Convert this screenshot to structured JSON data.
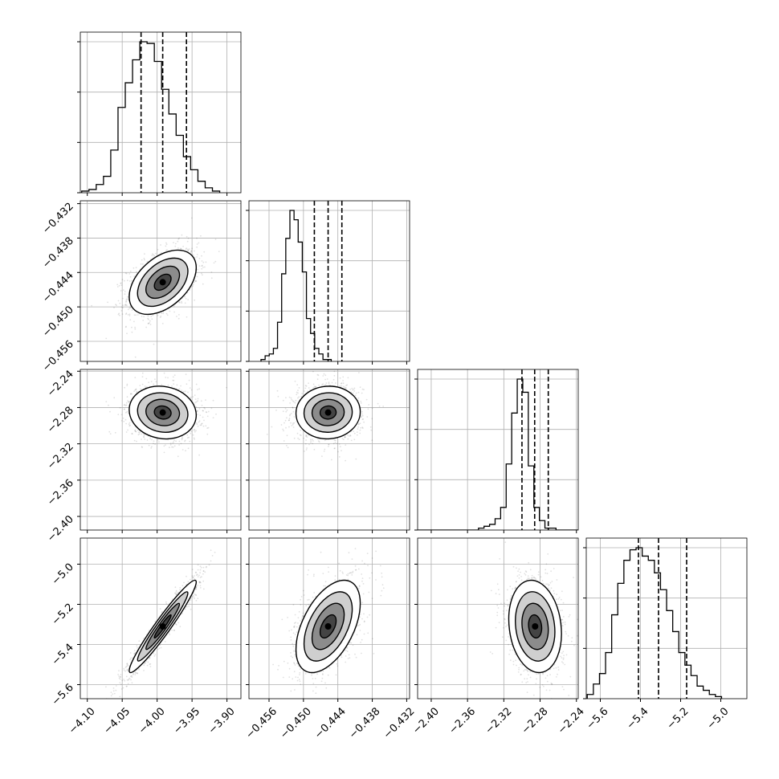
{
  "figure": {
    "background": "#ffffff",
    "grid_color": "#b0b0b0",
    "line_color": "#000000"
  },
  "chart_data": {
    "type": "corner",
    "grid": true,
    "params": [
      {
        "range": [
          -4.11,
          -3.88
        ],
        "ticks": [
          -4.1,
          -4.05,
          -4.0,
          -3.95,
          -3.9
        ],
        "tick_labels": [
          "−4.10",
          "−4.05",
          "−4.00",
          "−3.95",
          "−3.90"
        ],
        "quantiles": [
          -4.023,
          -3.992,
          -3.958
        ]
      },
      {
        "range": [
          -0.4595,
          -0.4315
        ],
        "ticks": [
          -0.456,
          -0.45,
          -0.444,
          -0.438,
          -0.432
        ],
        "tick_labels": [
          "−0.456",
          "−0.450",
          "−0.444",
          "−0.438",
          "−0.432"
        ],
        "quantiles": [
          -0.4481,
          -0.4457,
          -0.4433
        ]
      },
      {
        "range": [
          -2.415,
          -2.238
        ],
        "ticks": [
          -2.4,
          -2.36,
          -2.32,
          -2.28,
          -2.24
        ],
        "tick_labels": [
          "−2.40",
          "−2.36",
          "−2.32",
          "−2.28",
          "−2.24"
        ],
        "quantiles": [
          -2.3,
          -2.286,
          -2.271
        ]
      },
      {
        "range": [
          -5.67,
          -4.87
        ],
        "ticks": [
          -5.6,
          -5.4,
          -5.2,
          -5.0
        ],
        "tick_labels": [
          "−5.6",
          "−5.4",
          "−5.2",
          "−5.0"
        ],
        "quantiles": [
          -5.41,
          -5.31,
          -5.17
        ]
      }
    ],
    "histograms": [
      {
        "param": 0,
        "edges_start": -4.108,
        "bin_width": 0.0104,
        "counts": [
          1,
          2,
          5,
          10,
          26,
          52,
          67,
          81,
          92,
          91,
          80,
          63,
          48,
          35,
          22,
          14,
          7,
          3,
          1
        ]
      },
      {
        "param": 1,
        "edges_start": -0.4574,
        "bin_width": 0.00072,
        "counts": [
          1,
          3,
          4,
          7,
          21,
          47,
          66,
          81,
          76,
          64,
          48,
          23,
          15,
          7,
          4,
          1,
          1
        ]
      },
      {
        "param": 2,
        "edges_start": -2.415,
        "bin_width": 0.0061,
        "counts": [
          0,
          0,
          0,
          0,
          0,
          0,
          0,
          0,
          0,
          0,
          0,
          1,
          2,
          3,
          6,
          12,
          35,
          62,
          80,
          73,
          34,
          12,
          5,
          1,
          1,
          0,
          0,
          0,
          0
        ]
      },
      {
        "param": 3,
        "edges_start": -5.665,
        "bin_width": 0.0304,
        "counts": [
          2,
          7,
          12,
          22,
          40,
          55,
          66,
          71,
          72,
          68,
          66,
          60,
          52,
          42,
          32,
          22,
          16,
          11,
          6,
          4,
          2,
          1
        ]
      }
    ],
    "pairs": [
      {
        "x": 0,
        "y": 1,
        "mean": [
          -3.992,
          -0.4457
        ],
        "std": [
          0.024,
          0.0028
        ],
        "corr": 0.45
      },
      {
        "x": 0,
        "y": 2,
        "mean": [
          -3.992,
          -2.2855
        ],
        "std": [
          0.024,
          0.0145
        ],
        "corr": -0.1
      },
      {
        "x": 1,
        "y": 2,
        "mean": [
          -0.4457,
          -2.2855
        ],
        "std": [
          0.0028,
          0.0145
        ],
        "corr": 0.03
      },
      {
        "x": 0,
        "y": 3,
        "mean": [
          -3.992,
          -5.31
        ],
        "std": [
          0.024,
          0.115
        ],
        "corr": 0.96
      },
      {
        "x": 1,
        "y": 3,
        "mean": [
          -0.4457,
          -5.31
        ],
        "std": [
          0.0028,
          0.115
        ],
        "corr": 0.5
      },
      {
        "x": 2,
        "y": 3,
        "mean": [
          -2.2855,
          -5.31
        ],
        "std": [
          0.0145,
          0.115
        ],
        "corr": -0.15
      }
    ],
    "contour_levels_sigma": [
      0.5,
      1.0,
      1.5,
      2.0
    ]
  }
}
